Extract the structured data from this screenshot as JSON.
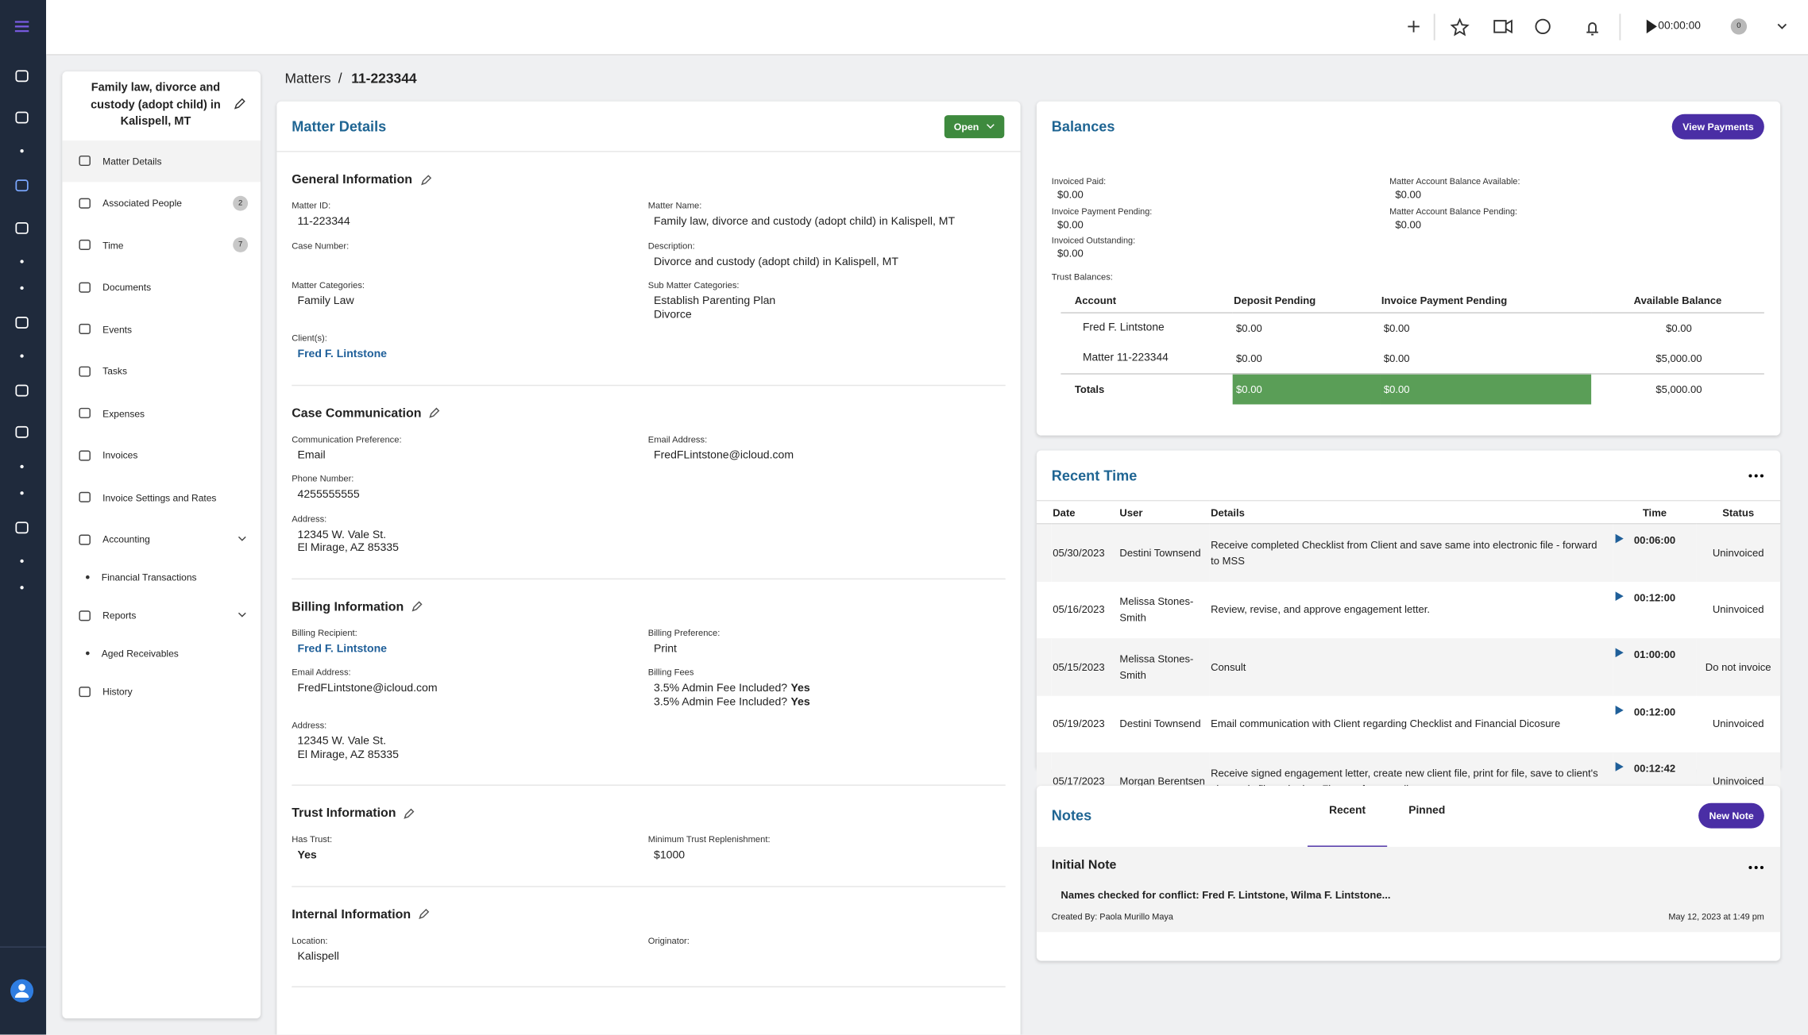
{
  "header": {
    "timer": "00:00:00",
    "badge": 0
  },
  "sidebar": {
    "title": "Family law, divorce and custody (adopt child) in Kalispell, MT",
    "nav": [
      {
        "label": "Matter Details",
        "active": true
      },
      {
        "label": "Associated People",
        "badge": 2
      },
      {
        "label": "Time",
        "badge": 7
      },
      {
        "label": "Documents"
      },
      {
        "label": "Events"
      },
      {
        "label": "Tasks"
      },
      {
        "label": "Expenses"
      },
      {
        "label": "Invoices"
      },
      {
        "label": "Invoice Settings and Rates"
      },
      {
        "label": "Accounting",
        "expandable": true
      },
      {
        "label": "Financial Transactions",
        "sub": true
      },
      {
        "label": "Reports",
        "expandable": true
      },
      {
        "label": "Aged Receivables",
        "sub": true
      },
      {
        "label": "History"
      }
    ]
  },
  "breadcrumb": [
    "Matters",
    "11-223344"
  ],
  "matter_details": {
    "title": "Matter Details",
    "status": "Open",
    "sections": [
      {
        "title": "General Information",
        "rows": [
          [
            {
              "label": "Matter ID:",
              "lines": [
                "11-223344"
              ]
            },
            {
              "label": "Matter Name:",
              "lines": [
                "Family law, divorce and custody (adopt child) in Kalispell, MT"
              ]
            }
          ],
          [
            {
              "label": "Case Number:",
              "lines": []
            },
            {
              "label": "Description:",
              "lines": [
                "Divorce and custody (adopt child) in Kalispell, MT"
              ]
            }
          ],
          [
            {
              "label": "Matter Categories:",
              "lines": [
                "Family Law"
              ]
            },
            {
              "label": "Sub Matter Categories:",
              "lines": [
                "Establish Parenting Plan",
                "Divorce"
              ]
            }
          ],
          [
            {
              "label": "Client(s):",
              "lines": [
                "Fred F. Lintstone"
              ],
              "link": true
            }
          ]
        ]
      },
      {
        "title": "Case Communication",
        "rows": [
          [
            {
              "label": "Communication Preference:",
              "lines": [
                "Email"
              ]
            },
            {
              "label": "Email Address:",
              "lines": [
                "FredFLintstone@icloud.com"
              ]
            }
          ],
          [
            {
              "label": "Phone Number:",
              "lines": [
                "4255555555"
              ]
            }
          ],
          [
            {
              "label": "Address:",
              "lines": [
                "12345 W. Vale St.",
                "El Mirage, AZ 85335"
              ]
            }
          ]
        ]
      },
      {
        "title": "Billing Information",
        "rows": [
          [
            {
              "label": "Billing Recipient:",
              "lines": [
                "Fred F. Lintstone"
              ],
              "link": true
            },
            {
              "label": "Billing Preference:",
              "lines": [
                "Print"
              ]
            }
          ],
          [
            {
              "label": "Email Address:",
              "lines": [
                "FredFLintstone@icloud.com"
              ]
            },
            {
              "label": "Billing Fees",
              "lines": [
                [
                  "3.5% Admin Fee Included?",
                  "Yes"
                ],
                [
                  "3.5% Admin Fee Included?",
                  "Yes"
                ]
              ]
            }
          ],
          [
            {
              "label": "Address:",
              "lines": [
                "12345 W. Vale St.",
                "El Mirage, AZ 85335"
              ]
            }
          ]
        ]
      },
      {
        "title": "Trust Information",
        "rows": [
          [
            {
              "label": "Has Trust:",
              "lines": [
                "Yes"
              ],
              "strong": true
            },
            {
              "label": "Minimum Trust Replenishment:",
              "lines": [
                "$1000"
              ]
            }
          ]
        ]
      },
      {
        "title": "Internal Information",
        "rows": [
          [
            {
              "label": "Location:",
              "lines": [
                "Kalispell"
              ]
            },
            {
              "label": "Originator:",
              "lines": []
            }
          ]
        ]
      }
    ]
  },
  "balances": {
    "title": "Balances",
    "button": "View Payments",
    "left": [
      {
        "label": "Invoiced Paid:",
        "value": "$0.00"
      },
      {
        "label": "Invoice Payment Pending:",
        "value": "$0.00"
      },
      {
        "label": "Invoiced Outstanding:",
        "value": "$0.00"
      }
    ],
    "right": [
      {
        "label": "Matter Account Balance Available:",
        "value": "$0.00"
      },
      {
        "label": "Matter Account Balance Pending:",
        "value": "$0.00"
      }
    ],
    "trust_label": "Trust Balances:",
    "trust_table": {
      "headers": [
        "Account",
        "Deposit Pending",
        "Invoice Payment Pending",
        "Available Balance"
      ],
      "rows": [
        [
          "Fred F. Lintstone",
          "$0.00",
          "$0.00",
          "$0.00"
        ],
        [
          "Matter 11-223344",
          "$0.00",
          "$0.00",
          "$5,000.00"
        ]
      ],
      "totals": {
        "label": "Totals",
        "values": [
          "$0.00",
          "$0.00",
          "$5,000.00"
        ],
        "highlight": [
          true,
          true,
          false
        ],
        "color": "#5a9e57"
      }
    }
  },
  "recent_time": {
    "title": "Recent Time",
    "headers": [
      "Date",
      "User",
      "Details",
      "Time",
      "Status"
    ],
    "rows": [
      [
        "05/30/2023",
        "Destini Townsend",
        "Receive completed Checklist from Client and save same into electronic file - forward to MSS",
        "00:06:00",
        "Uninvoiced"
      ],
      [
        "05/16/2023",
        "Melissa Stones-Smith",
        "Review, revise, and approve engagement letter.",
        "00:12:00",
        "Uninvoiced"
      ],
      [
        "05/15/2023",
        "Melissa Stones-Smith",
        "Consult",
        "01:00:00",
        "Do not invoice"
      ],
      [
        "05/19/2023",
        "Destini Townsend",
        "Email communication with Client regarding Checklist and Financial Dicosure",
        "00:12:00",
        "Uninvoiced"
      ],
      [
        "05/17/2023",
        "Morgan Berentsen",
        "Receive signed engagement letter, create new client file, print for file, save to client's electronic file, submit to Finance for recording.",
        "00:12:42",
        "Uninvoiced"
      ]
    ]
  },
  "notes": {
    "title": "Notes",
    "tabs": [
      "Recent",
      "Pinned"
    ],
    "button": "New Note",
    "items": [
      {
        "title": "Initial Note",
        "text": "Names checked for conflict: Fred F. Lintstone, Wilma F. Lintstone...",
        "created_by": "Created By: Paola Murillo Maya",
        "date": "May 12, 2023 at 1:49 pm"
      }
    ]
  }
}
